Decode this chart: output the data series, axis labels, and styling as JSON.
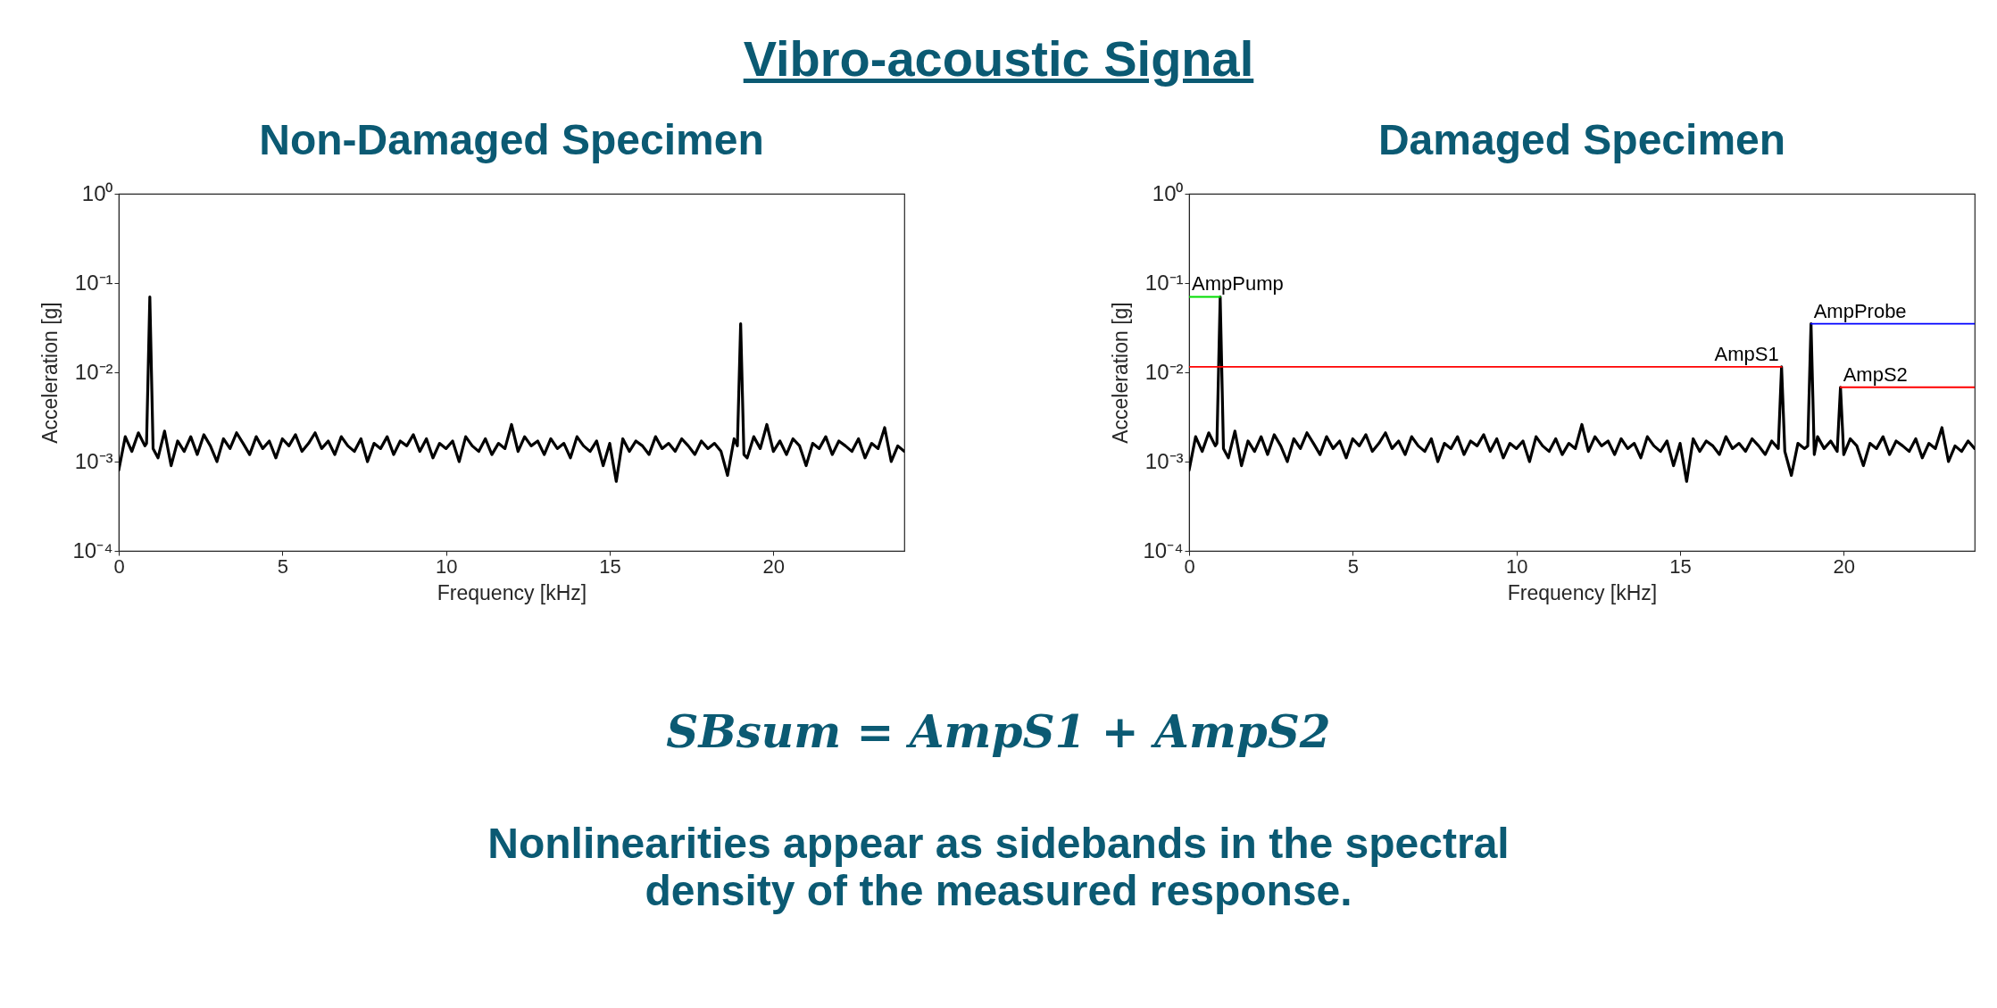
{
  "chart_data": [
    {
      "type": "line",
      "title": "Non-Damaged Specimen",
      "xlabel": "Frequency [kHz]",
      "ylabel": "Acceleration [g]",
      "log": "y",
      "xlim": [
        0,
        24
      ],
      "xticks": [
        0,
        5,
        10,
        15,
        20
      ],
      "ylim": [
        0.0001,
        1
      ],
      "yticks": [
        {
          "value": 0.0001,
          "label": "10⁻⁴"
        },
        {
          "value": 0.001,
          "label": "10⁻³"
        },
        {
          "value": 0.01,
          "label": "10⁻²"
        },
        {
          "value": 0.1,
          "label": "10⁻¹"
        },
        {
          "value": 1,
          "label": "10⁰"
        }
      ],
      "series": [
        {
          "color": "#000000",
          "x": [
            0,
            0.2,
            0.4,
            0.6,
            0.8,
            0.85,
            0.95,
            1.05,
            1.2,
            1.4,
            1.6,
            1.8,
            2,
            2.2,
            2.4,
            2.6,
            2.8,
            3,
            3.2,
            3.4,
            3.6,
            3.8,
            4,
            4.2,
            4.4,
            4.6,
            4.8,
            5,
            5.2,
            5.4,
            5.6,
            5.8,
            6,
            6.2,
            6.4,
            6.6,
            6.8,
            7,
            7.2,
            7.4,
            7.6,
            7.8,
            8,
            8.2,
            8.4,
            8.6,
            8.8,
            9,
            9.2,
            9.4,
            9.6,
            9.8,
            10,
            10.2,
            10.4,
            10.6,
            10.8,
            11,
            11.2,
            11.4,
            11.6,
            11.8,
            12,
            12.2,
            12.4,
            12.6,
            12.8,
            13,
            13.2,
            13.4,
            13.6,
            13.8,
            14,
            14.2,
            14.4,
            14.6,
            14.8,
            15,
            15.2,
            15.4,
            15.6,
            15.8,
            16,
            16.2,
            16.4,
            16.6,
            16.8,
            17,
            17.2,
            17.4,
            17.6,
            17.8,
            18,
            18.2,
            18.4,
            18.6,
            18.8,
            18.9,
            19,
            19.1,
            19.2,
            19.4,
            19.6,
            19.8,
            20,
            20.2,
            20.4,
            20.6,
            20.8,
            21,
            21.2,
            21.4,
            21.6,
            21.8,
            22,
            22.2,
            22.4,
            22.6,
            22.8,
            23,
            23.2,
            23.4,
            23.6,
            23.8,
            24
          ],
          "values": [
            0.0008,
            0.0019,
            0.0013,
            0.0021,
            0.0015,
            0.0016,
            0.07,
            0.0014,
            0.0011,
            0.0022,
            0.0009,
            0.0017,
            0.0013,
            0.0019,
            0.0012,
            0.002,
            0.0015,
            0.001,
            0.0018,
            0.0014,
            0.0021,
            0.0016,
            0.0012,
            0.0019,
            0.0014,
            0.0017,
            0.0011,
            0.0018,
            0.0015,
            0.002,
            0.0013,
            0.0016,
            0.0021,
            0.0014,
            0.0017,
            0.0012,
            0.0019,
            0.0015,
            0.0013,
            0.0018,
            0.001,
            0.0016,
            0.0014,
            0.0019,
            0.0012,
            0.0017,
            0.0015,
            0.002,
            0.0013,
            0.0018,
            0.0011,
            0.0016,
            0.0014,
            0.0017,
            0.001,
            0.0019,
            0.0015,
            0.0013,
            0.0018,
            0.0012,
            0.0016,
            0.0014,
            0.0026,
            0.0013,
            0.0019,
            0.0015,
            0.0017,
            0.0012,
            0.0018,
            0.0014,
            0.0016,
            0.0011,
            0.0019,
            0.0015,
            0.0013,
            0.0017,
            0.0009,
            0.0016,
            0.0006,
            0.0018,
            0.0013,
            0.0017,
            0.0015,
            0.0012,
            0.0019,
            0.0014,
            0.0016,
            0.0013,
            0.0018,
            0.0015,
            0.0012,
            0.0017,
            0.0014,
            0.0016,
            0.0013,
            0.0007,
            0.0018,
            0.0015,
            0.035,
            0.0012,
            0.0011,
            0.0019,
            0.0014,
            0.0026,
            0.0013,
            0.0017,
            0.0012,
            0.0018,
            0.0015,
            0.0009,
            0.0016,
            0.0014,
            0.0019,
            0.0012,
            0.0017,
            0.0015,
            0.0013,
            0.0018,
            0.0011,
            0.0016,
            0.0014,
            0.0024,
            0.001,
            0.0015,
            0.0013
          ]
        }
      ]
    },
    {
      "type": "line",
      "title": "Damaged Specimen",
      "xlabel": "Frequency [kHz]",
      "ylabel": "Acceleration [g]",
      "log": "y",
      "xlim": [
        0,
        24
      ],
      "xticks": [
        0,
        5,
        10,
        15,
        20
      ],
      "ylim": [
        0.0001,
        1
      ],
      "yticks": [
        {
          "value": 0.0001,
          "label": "10⁻⁴"
        },
        {
          "value": 0.001,
          "label": "10⁻³"
        },
        {
          "value": 0.01,
          "label": "10⁻²"
        },
        {
          "value": 0.1,
          "label": "10⁻¹"
        },
        {
          "value": 1,
          "label": "10⁰"
        }
      ],
      "series": [
        {
          "color": "#000000",
          "x": [
            0,
            0.2,
            0.4,
            0.6,
            0.8,
            0.85,
            0.95,
            1.05,
            1.2,
            1.4,
            1.6,
            1.8,
            2,
            2.2,
            2.4,
            2.6,
            2.8,
            3,
            3.2,
            3.4,
            3.6,
            3.8,
            4,
            4.2,
            4.4,
            4.6,
            4.8,
            5,
            5.2,
            5.4,
            5.6,
            5.8,
            6,
            6.2,
            6.4,
            6.6,
            6.8,
            7,
            7.2,
            7.4,
            7.6,
            7.8,
            8,
            8.2,
            8.4,
            8.6,
            8.8,
            9,
            9.2,
            9.4,
            9.6,
            9.8,
            10,
            10.2,
            10.4,
            10.6,
            10.8,
            11,
            11.2,
            11.4,
            11.6,
            11.8,
            12,
            12.2,
            12.4,
            12.6,
            12.8,
            13,
            13.2,
            13.4,
            13.6,
            13.8,
            14,
            14.2,
            14.4,
            14.6,
            14.8,
            15,
            15.2,
            15.4,
            15.6,
            15.8,
            16,
            16.2,
            16.4,
            16.6,
            16.8,
            17,
            17.2,
            17.4,
            17.6,
            17.8,
            18,
            18.1,
            18.2,
            18.4,
            18.6,
            18.8,
            18.9,
            19,
            19.1,
            19.2,
            19.4,
            19.6,
            19.8,
            19.9,
            20,
            20.2,
            20.4,
            20.6,
            20.8,
            21,
            21.2,
            21.4,
            21.6,
            21.8,
            22,
            22.2,
            22.4,
            22.6,
            22.8,
            23,
            23.2,
            23.4,
            23.6,
            23.8,
            24
          ],
          "values": [
            0.0008,
            0.0019,
            0.0013,
            0.0021,
            0.0015,
            0.0016,
            0.07,
            0.0014,
            0.0011,
            0.0022,
            0.0009,
            0.0017,
            0.0013,
            0.0019,
            0.0012,
            0.002,
            0.0015,
            0.001,
            0.0018,
            0.0014,
            0.0021,
            0.0016,
            0.0012,
            0.0019,
            0.0014,
            0.0017,
            0.0011,
            0.0018,
            0.0015,
            0.002,
            0.0013,
            0.0016,
            0.0021,
            0.0014,
            0.0017,
            0.0012,
            0.0019,
            0.0015,
            0.0013,
            0.0018,
            0.001,
            0.0016,
            0.0014,
            0.0019,
            0.0012,
            0.0017,
            0.0015,
            0.002,
            0.0013,
            0.0018,
            0.0011,
            0.0016,
            0.0014,
            0.0017,
            0.001,
            0.0019,
            0.0015,
            0.0013,
            0.0018,
            0.0012,
            0.0016,
            0.0014,
            0.0026,
            0.0013,
            0.0019,
            0.0015,
            0.0017,
            0.0012,
            0.0018,
            0.0014,
            0.0016,
            0.0011,
            0.0019,
            0.0015,
            0.0013,
            0.0017,
            0.0009,
            0.0016,
            0.0006,
            0.0018,
            0.0013,
            0.0017,
            0.0015,
            0.0012,
            0.0019,
            0.0014,
            0.0016,
            0.0013,
            0.0018,
            0.0015,
            0.0012,
            0.0017,
            0.0014,
            0.0115,
            0.0013,
            0.0007,
            0.0016,
            0.0014,
            0.0015,
            0.035,
            0.0012,
            0.0019,
            0.0014,
            0.0017,
            0.0013,
            0.0068,
            0.0012,
            0.0018,
            0.0015,
            0.0009,
            0.0016,
            0.0014,
            0.0019,
            0.0012,
            0.0017,
            0.0015,
            0.0013,
            0.0018,
            0.0011,
            0.0016,
            0.0014,
            0.0024,
            0.001,
            0.0015,
            0.0013,
            0.0017,
            0.0014
          ]
        },
        {
          "name": "AmpPump",
          "color": "#00dd00",
          "x": [
            0,
            0.95
          ],
          "values": [
            0.07,
            0.07
          ]
        },
        {
          "name": "AmpS1",
          "color": "#ff0000",
          "x": [
            0,
            18.1
          ],
          "values": [
            0.0115,
            0.0115
          ]
        },
        {
          "name": "AmpProbe",
          "color": "#0000ff",
          "x": [
            19,
            24
          ],
          "values": [
            0.035,
            0.035
          ]
        },
        {
          "name": "AmpS2",
          "color": "#ff0000",
          "x": [
            19.9,
            24
          ],
          "values": [
            0.0068,
            0.0068
          ]
        }
      ]
    },
    {
      "type": "other",
      "title": "Vibro-acoustic Signal",
      "annotations": [
        "SBsum = AmpS1 + AmpS2",
        "Nonlinearities appear as sidebands in the spectral density of the measured response."
      ]
    }
  ]
}
